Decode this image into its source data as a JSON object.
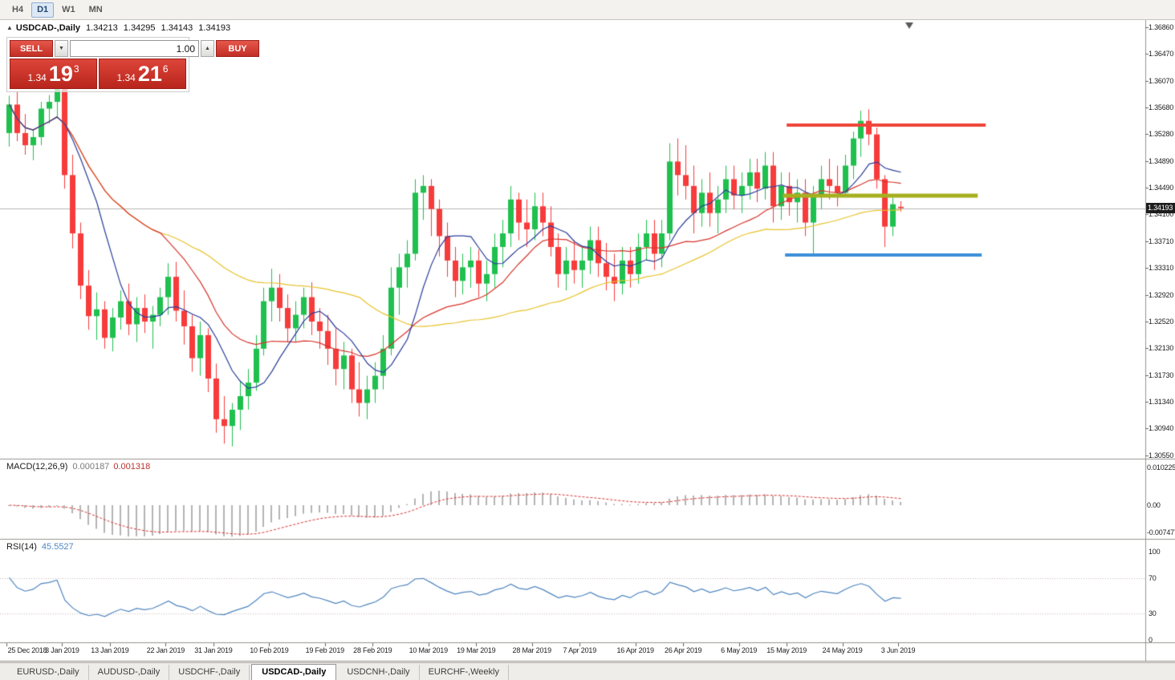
{
  "toolbar": {
    "timeframes": [
      {
        "label": "H4",
        "active": false
      },
      {
        "label": "D1",
        "active": true
      },
      {
        "label": "W1",
        "active": false
      },
      {
        "label": "MN",
        "active": false
      }
    ]
  },
  "symbol_header": {
    "marker": "▲",
    "title": "USDCAD-,Daily",
    "open": "1.34213",
    "high": "1.34295",
    "low": "1.34143",
    "close": "1.34193"
  },
  "one_click": {
    "sell_label": "SELL",
    "buy_label": "BUY",
    "volume": "1.00",
    "spinner_down": "▼",
    "spinner_up": "▲",
    "sell_price": {
      "prefix": "1.34",
      "big": "19",
      "sup": "3"
    },
    "buy_price": {
      "prefix": "1.34",
      "big": "21",
      "sup": "6"
    }
  },
  "bid_badge": "1.34193",
  "indicators": {
    "macd": {
      "name": "MACD(12,26,9)",
      "value_main": "0.000187",
      "value_signal": "0.001318",
      "params": {
        "fast": 12,
        "slow": 26,
        "signal": 9
      },
      "axis": [
        {
          "text": "0.010225",
          "value": 0.010225
        },
        {
          "text": "0.00",
          "value": 0
        },
        {
          "text": "-0.007477",
          "value": -0.007477
        }
      ],
      "colors": {
        "histogram": "#b4b4b4",
        "signal": "#d93434"
      }
    },
    "rsi": {
      "name": "RSI(14)",
      "value": "45.5527",
      "period": 14,
      "color": "#4f86c0",
      "levels": [
        {
          "text": "100",
          "value": 100,
          "dashed": false
        },
        {
          "text": "70",
          "value": 70,
          "dashed": true
        },
        {
          "text": "30",
          "value": 30,
          "dashed": true
        },
        {
          "text": "0",
          "value": 0,
          "dashed": false
        }
      ]
    }
  },
  "tabs": [
    {
      "label": "EURUSD-,Daily",
      "active": false
    },
    {
      "label": "AUDUSD-,Daily",
      "active": false
    },
    {
      "label": "USDCHF-,Daily",
      "active": false
    },
    {
      "label": "USDCAD-,Daily",
      "active": true
    },
    {
      "label": "USDCNH-,Daily",
      "active": false
    },
    {
      "label": "EURCHF-,Weekly",
      "active": false
    }
  ],
  "chart_data": {
    "type": "candlestick",
    "symbol": "USDCAD-",
    "timeframe": "Daily",
    "bid": 1.34193,
    "shift_marker_bar": 113.4,
    "colors": {
      "bull": "#1fc04e",
      "bear": "#f73b3b",
      "bid_line": "#b6b6b6",
      "badge_bg": "#1d1d1d"
    },
    "price_axis": {
      "labels": [
        "1.36860",
        "1.36470",
        "1.36070",
        "1.35680",
        "1.35280",
        "1.34890",
        "1.34490",
        "1.34100",
        "1.33710",
        "1.33310",
        "1.32920",
        "1.32520",
        "1.32130",
        "1.31730",
        "1.31340",
        "1.30940",
        "1.30550"
      ]
    },
    "date_axis": [
      {
        "bar": 0,
        "label": "25 Dec 2018"
      },
      {
        "bar": 7,
        "label": "3 Jan 2019"
      },
      {
        "bar": 13,
        "label": "13 Jan 2019"
      },
      {
        "bar": 20,
        "label": "22 Jan 2019"
      },
      {
        "bar": 26,
        "label": "31 Jan 2019"
      },
      {
        "bar": 33,
        "label": "10 Feb 2019"
      },
      {
        "bar": 40,
        "label": "19 Feb 2019"
      },
      {
        "bar": 46,
        "label": "28 Feb 2019"
      },
      {
        "bar": 53,
        "label": "10 Mar 2019"
      },
      {
        "bar": 59,
        "label": "19 Mar 2019"
      },
      {
        "bar": 66,
        "label": "28 Mar 2019"
      },
      {
        "bar": 72,
        "label": "7 Apr 2019"
      },
      {
        "bar": 79,
        "label": "16 Apr 2019"
      },
      {
        "bar": 85,
        "label": "26 Apr 2019"
      },
      {
        "bar": 92,
        "label": "6 May 2019"
      },
      {
        "bar": 98,
        "label": "15 May 2019"
      },
      {
        "bar": 105,
        "label": "24 May 2019"
      },
      {
        "bar": 112,
        "label": "3 Jun 2019"
      }
    ],
    "moving_averages": [
      {
        "period": 45,
        "color": "#e7c32b"
      },
      {
        "period": 20,
        "color": "#d8352c"
      },
      {
        "period": 8,
        "color": "#2b3e9b"
      }
    ],
    "objects": [
      {
        "name": "resistance-line",
        "type": "hline-segment",
        "price": 1.3542,
        "from_bar": 98,
        "to_bar": 123,
        "color": "#ef4438",
        "width": 4
      },
      {
        "name": "pivot-line",
        "type": "hline-segment",
        "price": 1.3438,
        "from_bar": 97.5,
        "to_bar": 122,
        "color": "#a6b01e",
        "width": 5
      },
      {
        "name": "support-line",
        "type": "hline-segment",
        "price": 1.335,
        "from_bar": 97.8,
        "to_bar": 122.5,
        "color": "#3d8fd9",
        "width": 4
      }
    ],
    "candles": [
      [
        1.353,
        1.3585,
        1.351,
        1.3572
      ],
      [
        1.3572,
        1.3592,
        1.3518,
        1.353
      ],
      [
        1.353,
        1.3558,
        1.3498,
        1.3512
      ],
      [
        1.3512,
        1.3536,
        1.349,
        1.3524
      ],
      [
        1.3524,
        1.3576,
        1.3512,
        1.3566
      ],
      [
        1.3566,
        1.3586,
        1.3544,
        1.3576
      ],
      [
        1.3576,
        1.3602,
        1.3552,
        1.3596
      ],
      [
        1.3596,
        1.3605,
        1.3448,
        1.3468
      ],
      [
        1.3468,
        1.3498,
        1.336,
        1.3382
      ],
      [
        1.3382,
        1.3398,
        1.3285,
        1.3305
      ],
      [
        1.3305,
        1.3328,
        1.324,
        1.326
      ],
      [
        1.326,
        1.3295,
        1.3225,
        1.327
      ],
      [
        1.327,
        1.3282,
        1.3212,
        1.3228
      ],
      [
        1.3228,
        1.3272,
        1.3208,
        1.3258
      ],
      [
        1.3258,
        1.3298,
        1.324,
        1.3282
      ],
      [
        1.3282,
        1.3308,
        1.3232,
        1.3248
      ],
      [
        1.3248,
        1.3288,
        1.3222,
        1.3272
      ],
      [
        1.3272,
        1.3292,
        1.3235,
        1.3252
      ],
      [
        1.3252,
        1.3275,
        1.3212,
        1.3262
      ],
      [
        1.3262,
        1.3302,
        1.3245,
        1.3288
      ],
      [
        1.3288,
        1.3338,
        1.3262,
        1.3318
      ],
      [
        1.3318,
        1.334,
        1.3252,
        1.3268
      ],
      [
        1.3268,
        1.3298,
        1.3218,
        1.3245
      ],
      [
        1.3245,
        1.3262,
        1.3178,
        1.3198
      ],
      [
        1.3198,
        1.3252,
        1.3172,
        1.3232
      ],
      [
        1.3232,
        1.3242,
        1.3148,
        1.3168
      ],
      [
        1.3168,
        1.319,
        1.3088,
        1.3108
      ],
      [
        1.3108,
        1.3142,
        1.3072,
        1.3098
      ],
      [
        1.3098,
        1.3132,
        1.3068,
        1.3122
      ],
      [
        1.3122,
        1.3165,
        1.3092,
        1.3142
      ],
      [
        1.3142,
        1.3182,
        1.3122,
        1.3162
      ],
      [
        1.3162,
        1.3232,
        1.315,
        1.3212
      ],
      [
        1.3212,
        1.3302,
        1.3202,
        1.3282
      ],
      [
        1.3282,
        1.333,
        1.3252,
        1.3302
      ],
      [
        1.3302,
        1.3322,
        1.3252,
        1.3272
      ],
      [
        1.3272,
        1.3292,
        1.3222,
        1.3242
      ],
      [
        1.3242,
        1.3282,
        1.3222,
        1.3262
      ],
      [
        1.3262,
        1.3302,
        1.3242,
        1.3288
      ],
      [
        1.3288,
        1.331,
        1.3232,
        1.3252
      ],
      [
        1.3252,
        1.3272,
        1.3212,
        1.3238
      ],
      [
        1.3238,
        1.3262,
        1.3188,
        1.3212
      ],
      [
        1.3212,
        1.3242,
        1.3158,
        1.3182
      ],
      [
        1.3182,
        1.3222,
        1.3152,
        1.3202
      ],
      [
        1.3202,
        1.3212,
        1.3132,
        1.3152
      ],
      [
        1.3152,
        1.3192,
        1.3112,
        1.3132
      ],
      [
        1.3132,
        1.3172,
        1.3108,
        1.3152
      ],
      [
        1.3152,
        1.3192,
        1.3132,
        1.3172
      ],
      [
        1.3172,
        1.3232,
        1.3152,
        1.3212
      ],
      [
        1.3212,
        1.3332,
        1.3202,
        1.3302
      ],
      [
        1.3302,
        1.3352,
        1.3262,
        1.3332
      ],
      [
        1.3332,
        1.3372,
        1.3302,
        1.3352
      ],
      [
        1.3352,
        1.3462,
        1.3342,
        1.3442
      ],
      [
        1.3442,
        1.3468,
        1.3402,
        1.3452
      ],
      [
        1.3452,
        1.3462,
        1.3378,
        1.3418
      ],
      [
        1.3418,
        1.3432,
        1.3348,
        1.3378
      ],
      [
        1.3378,
        1.3398,
        1.3318,
        1.3342
      ],
      [
        1.3342,
        1.3362,
        1.3288,
        1.3312
      ],
      [
        1.3312,
        1.3352,
        1.3292,
        1.3332
      ],
      [
        1.3332,
        1.3362,
        1.3302,
        1.3342
      ],
      [
        1.3342,
        1.3358,
        1.3288,
        1.3308
      ],
      [
        1.3308,
        1.3342,
        1.3282,
        1.3322
      ],
      [
        1.3322,
        1.3382,
        1.3302,
        1.3362
      ],
      [
        1.3362,
        1.3402,
        1.3332,
        1.3382
      ],
      [
        1.3382,
        1.3452,
        1.3362,
        1.3432
      ],
      [
        1.3432,
        1.3442,
        1.3372,
        1.3398
      ],
      [
        1.3398,
        1.3432,
        1.3362,
        1.3388
      ],
      [
        1.3388,
        1.3442,
        1.3372,
        1.3422
      ],
      [
        1.3422,
        1.3442,
        1.3378,
        1.3398
      ],
      [
        1.3398,
        1.3422,
        1.3348,
        1.3362
      ],
      [
        1.3362,
        1.3382,
        1.3302,
        1.3322
      ],
      [
        1.3322,
        1.3362,
        1.3298,
        1.3342
      ],
      [
        1.3342,
        1.3372,
        1.3308,
        1.3328
      ],
      [
        1.3328,
        1.3362,
        1.3302,
        1.3342
      ],
      [
        1.3342,
        1.3392,
        1.3322,
        1.3372
      ],
      [
        1.3372,
        1.3392,
        1.3318,
        1.3338
      ],
      [
        1.3338,
        1.3368,
        1.3298,
        1.3318
      ],
      [
        1.3318,
        1.3352,
        1.3282,
        1.3308
      ],
      [
        1.3308,
        1.3362,
        1.3292,
        1.3342
      ],
      [
        1.3342,
        1.3362,
        1.3302,
        1.3322
      ],
      [
        1.3322,
        1.3382,
        1.3308,
        1.3362
      ],
      [
        1.3362,
        1.3402,
        1.3342,
        1.3382
      ],
      [
        1.3382,
        1.3402,
        1.3328,
        1.3352
      ],
      [
        1.3352,
        1.3402,
        1.3332,
        1.3382
      ],
      [
        1.3382,
        1.3515,
        1.3372,
        1.3488
      ],
      [
        1.3488,
        1.3522,
        1.3438,
        1.3468
      ],
      [
        1.3468,
        1.3512,
        1.3432,
        1.3452
      ],
      [
        1.3452,
        1.3482,
        1.3382,
        1.3412
      ],
      [
        1.3412,
        1.3462,
        1.3392,
        1.3442
      ],
      [
        1.3442,
        1.3472,
        1.3392,
        1.3412
      ],
      [
        1.3412,
        1.3452,
        1.3382,
        1.3432
      ],
      [
        1.3432,
        1.3482,
        1.3412,
        1.3462
      ],
      [
        1.3462,
        1.3482,
        1.3418,
        1.3438
      ],
      [
        1.3438,
        1.3472,
        1.3412,
        1.3452
      ],
      [
        1.3452,
        1.3492,
        1.3432,
        1.3472
      ],
      [
        1.3472,
        1.3492,
        1.3428,
        1.3448
      ],
      [
        1.3448,
        1.3502,
        1.3432,
        1.3482
      ],
      [
        1.3482,
        1.3502,
        1.3398,
        1.3422
      ],
      [
        1.3422,
        1.3472,
        1.3402,
        1.3452
      ],
      [
        1.3452,
        1.3472,
        1.3408,
        1.3428
      ],
      [
        1.3428,
        1.3462,
        1.3398,
        1.3442
      ],
      [
        1.3442,
        1.3462,
        1.3378,
        1.3398
      ],
      [
        1.3398,
        1.3452,
        1.3352,
        1.3438
      ],
      [
        1.3438,
        1.3482,
        1.3418,
        1.3462
      ],
      [
        1.3462,
        1.3492,
        1.3432,
        1.3452
      ],
      [
        1.3452,
        1.3482,
        1.3422,
        1.3442
      ],
      [
        1.3442,
        1.3498,
        1.3438,
        1.3482
      ],
      [
        1.3482,
        1.3532,
        1.3462,
        1.3522
      ],
      [
        1.3522,
        1.3563,
        1.3495,
        1.3548
      ],
      [
        1.3548,
        1.3565,
        1.3512,
        1.3528
      ],
      [
        1.3528,
        1.3538,
        1.3448,
        1.3462
      ],
      [
        1.3462,
        1.3468,
        1.3362,
        1.3392
      ],
      [
        1.3392,
        1.3435,
        1.3378,
        1.3425
      ],
      [
        1.34213,
        1.34295,
        1.34143,
        1.34193
      ]
    ]
  }
}
